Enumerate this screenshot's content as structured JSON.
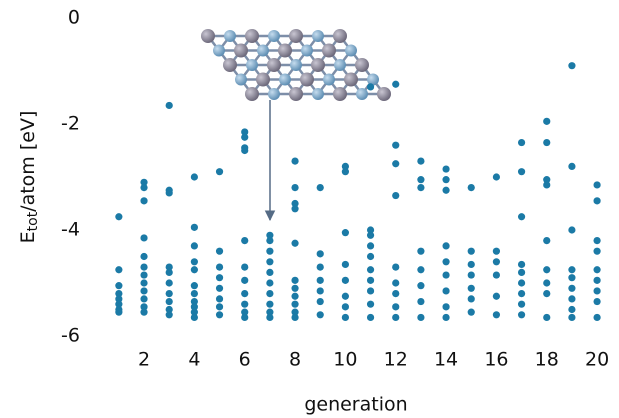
{
  "chart_data": {
    "type": "scatter",
    "xlabel": "generation",
    "ylabel": [
      "E",
      "tot",
      "/atom [eV]"
    ],
    "xlim": [
      0,
      20.66
    ],
    "ylim": [
      -6,
      0
    ],
    "xticks": [
      2,
      4,
      6,
      8,
      10,
      12,
      14,
      16,
      18,
      20
    ],
    "yticks": [
      -6,
      -4,
      -2,
      0
    ],
    "series": [
      {
        "color": "#1b7aa6",
        "x": [
          1,
          1,
          1,
          1,
          1,
          1,
          1,
          1,
          2,
          2,
          2,
          2,
          2,
          2,
          2,
          2,
          2,
          2,
          2,
          2,
          3,
          3,
          3,
          3,
          3,
          3,
          3,
          3,
          3,
          3,
          4,
          4,
          4,
          4,
          4,
          4,
          4,
          4,
          4,
          4,
          4,
          5,
          5,
          5,
          5,
          5,
          5,
          5,
          5,
          6,
          6,
          6,
          6,
          6,
          6,
          6,
          6,
          6,
          6,
          6,
          7,
          7,
          7,
          7,
          7,
          7,
          7,
          7,
          7,
          7,
          8,
          8,
          8,
          8,
          8,
          8,
          8,
          8,
          8,
          8,
          8,
          9,
          9,
          9,
          9,
          9,
          9,
          9,
          10,
          10,
          10,
          10,
          10,
          10,
          10,
          10,
          11,
          11,
          11,
          11,
          11,
          11,
          11,
          11,
          11,
          11,
          12,
          12,
          12,
          12,
          12,
          12,
          12,
          12,
          12,
          13,
          13,
          13,
          13,
          13,
          13,
          13,
          13,
          14,
          14,
          14,
          14,
          14,
          14,
          14,
          14,
          14,
          15,
          15,
          15,
          15,
          15,
          15,
          15,
          16,
          16,
          16,
          16,
          16,
          16,
          17,
          17,
          17,
          17,
          17,
          17,
          17,
          17,
          17,
          18,
          18,
          18,
          18,
          18,
          18,
          18,
          18,
          18,
          19,
          19,
          19,
          19,
          19,
          19,
          19,
          19,
          19,
          20,
          20,
          20,
          20,
          20,
          20,
          20,
          20,
          20
        ],
        "y": [
          -3.75,
          -4.75,
          -5.05,
          -5.2,
          -5.3,
          -5.4,
          -5.5,
          -5.55,
          -3.1,
          -3.2,
          -3.45,
          -4.15,
          -4.5,
          -4.7,
          -4.85,
          -5.0,
          -5.15,
          -5.3,
          -5.45,
          -5.55,
          -1.65,
          -3.25,
          -3.3,
          -4.7,
          -4.8,
          -5.0,
          -5.2,
          -5.35,
          -5.5,
          -5.6,
          -3.0,
          -3.95,
          -4.3,
          -4.6,
          -4.75,
          -5.05,
          -5.2,
          -5.35,
          -5.45,
          -5.55,
          -5.65,
          -2.9,
          -4.4,
          -4.7,
          -4.9,
          -5.1,
          -5.3,
          -5.45,
          -5.6,
          -2.15,
          -2.25,
          -2.45,
          -2.5,
          -4.2,
          -4.7,
          -4.95,
          -5.2,
          -5.4,
          -5.55,
          -5.65,
          -4.1,
          -4.2,
          -4.4,
          -4.6,
          -4.8,
          -5.0,
          -5.2,
          -5.4,
          -5.55,
          -5.65,
          -2.7,
          -3.2,
          -3.5,
          -3.6,
          -4.25,
          -4.95,
          -5.1,
          -5.25,
          -5.4,
          -5.55,
          -5.65,
          -3.2,
          -4.45,
          -4.7,
          -4.95,
          -5.15,
          -5.35,
          -5.6,
          -2.8,
          -2.9,
          -4.05,
          -4.65,
          -4.95,
          -5.25,
          -5.45,
          -5.65,
          -1.3,
          -4.0,
          -4.1,
          -4.3,
          -4.5,
          -4.75,
          -4.95,
          -5.15,
          -5.4,
          -5.65,
          -1.25,
          -2.4,
          -2.75,
          -3.35,
          -4.7,
          -5.0,
          -5.2,
          -5.45,
          -5.65,
          -2.7,
          -3.05,
          -3.2,
          -4.4,
          -4.75,
          -5.05,
          -5.35,
          -5.65,
          -2.85,
          -3.05,
          -3.25,
          -4.3,
          -4.6,
          -4.85,
          -5.15,
          -5.45,
          -5.65,
          -3.2,
          -4.4,
          -4.65,
          -4.85,
          -5.1,
          -5.3,
          -5.55,
          -3.0,
          -4.4,
          -4.6,
          -4.85,
          -5.25,
          -5.6,
          -2.35,
          -2.9,
          -3.75,
          -4.65,
          -4.8,
          -5.0,
          -5.2,
          -5.4,
          -5.6,
          -1.95,
          -2.35,
          -3.05,
          -3.15,
          -4.2,
          -4.75,
          -5.0,
          -5.2,
          -5.65,
          -0.9,
          -2.8,
          -4.0,
          -4.75,
          -4.9,
          -5.1,
          -5.3,
          -5.5,
          -5.65,
          -3.15,
          -3.45,
          -4.2,
          -4.4,
          -4.75,
          -4.95,
          -5.15,
          -5.35,
          -5.65
        ]
      }
    ]
  }
}
